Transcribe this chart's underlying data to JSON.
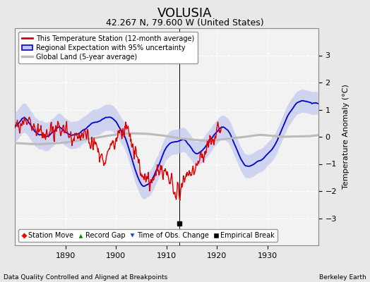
{
  "title": "VOLUSIA",
  "subtitle": "42.267 N, 79.600 W (United States)",
  "xlabel_left": "Data Quality Controlled and Aligned at Breakpoints",
  "xlabel_right": "Berkeley Earth",
  "ylabel": "Temperature Anomaly (°C)",
  "ylim": [
    -4,
    4
  ],
  "xlim": [
    1880,
    1940
  ],
  "xticks": [
    1890,
    1900,
    1910,
    1920,
    1930
  ],
  "yticks": [
    -3,
    -2,
    -1,
    0,
    1,
    2,
    3
  ],
  "bg_color": "#e8e8e8",
  "plot_bg_color": "#f2f2f2",
  "red_line_color": "#dd0000",
  "blue_line_color": "#0000cc",
  "blue_band_color": "#c0c8f0",
  "gray_line_color": "#bbbbbb",
  "grid_color": "#ffffff",
  "empirical_break_year": 1912.5,
  "empirical_break_value": -3.2,
  "breakline_year": 1912.5,
  "station_end_year": 1921,
  "seed": 12345
}
